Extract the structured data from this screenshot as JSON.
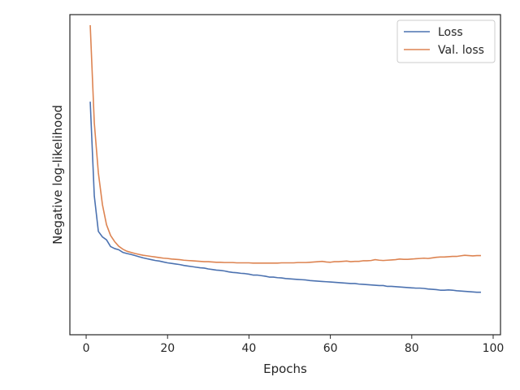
{
  "chart_data": {
    "type": "line",
    "title": "",
    "xlabel": "Epochs",
    "ylabel": "Negative log-likelihood",
    "xlim": [
      -4,
      101.8
    ],
    "ylim": [
      0.0,
      1.0
    ],
    "xticks": [
      "0",
      "20",
      "40",
      "60",
      "80",
      "100"
    ],
    "xtick_values": [
      0,
      20,
      40,
      60,
      80,
      100
    ],
    "y_tick_labels_visible": false,
    "grid": false,
    "legend_position": "top-right",
    "series": [
      {
        "name": "Loss",
        "color": "#4c72b0",
        "x": [
          1,
          2,
          3,
          4,
          5,
          6,
          7,
          8,
          9,
          10,
          11,
          12,
          13,
          14,
          15,
          16,
          17,
          18,
          19,
          20,
          21,
          22,
          23,
          24,
          25,
          26,
          27,
          28,
          29,
          30,
          31,
          32,
          33,
          34,
          35,
          36,
          37,
          38,
          39,
          40,
          41,
          42,
          43,
          44,
          45,
          46,
          47,
          48,
          49,
          50,
          51,
          52,
          53,
          54,
          55,
          56,
          57,
          58,
          59,
          60,
          61,
          62,
          63,
          64,
          65,
          66,
          67,
          68,
          69,
          70,
          71,
          72,
          73,
          74,
          75,
          76,
          77,
          78,
          79,
          80,
          81,
          82,
          83,
          84,
          85,
          86,
          87,
          88,
          89,
          90,
          91,
          92,
          93,
          94,
          95,
          96,
          97
        ],
        "values": [
          0.737,
          0.413,
          0.291,
          0.272,
          0.262,
          0.239,
          0.232,
          0.228,
          0.219,
          0.215,
          0.212,
          0.208,
          0.204,
          0.2,
          0.197,
          0.194,
          0.191,
          0.189,
          0.186,
          0.183,
          0.181,
          0.179,
          0.177,
          0.174,
          0.172,
          0.17,
          0.168,
          0.166,
          0.165,
          0.162,
          0.16,
          0.158,
          0.157,
          0.155,
          0.152,
          0.15,
          0.149,
          0.147,
          0.146,
          0.144,
          0.141,
          0.141,
          0.139,
          0.137,
          0.134,
          0.134,
          0.132,
          0.131,
          0.129,
          0.128,
          0.127,
          0.126,
          0.125,
          0.124,
          0.122,
          0.121,
          0.12,
          0.119,
          0.118,
          0.117,
          0.116,
          0.115,
          0.114,
          0.113,
          0.112,
          0.112,
          0.11,
          0.109,
          0.108,
          0.107,
          0.106,
          0.105,
          0.105,
          0.102,
          0.102,
          0.101,
          0.1,
          0.099,
          0.098,
          0.097,
          0.096,
          0.096,
          0.095,
          0.093,
          0.092,
          0.091,
          0.089,
          0.089,
          0.09,
          0.089,
          0.087,
          0.086,
          0.085,
          0.084,
          0.083,
          0.082,
          0.082
        ]
      },
      {
        "name": "Val. loss",
        "color": "#dd8452",
        "x": [
          1,
          2,
          3,
          4,
          5,
          6,
          7,
          8,
          9,
          10,
          11,
          12,
          13,
          14,
          15,
          16,
          17,
          18,
          19,
          20,
          21,
          22,
          23,
          24,
          25,
          26,
          27,
          28,
          29,
          30,
          31,
          32,
          33,
          34,
          35,
          36,
          37,
          38,
          39,
          40,
          41,
          42,
          43,
          44,
          45,
          46,
          47,
          48,
          49,
          50,
          51,
          52,
          53,
          54,
          55,
          56,
          57,
          58,
          59,
          60,
          61,
          62,
          63,
          64,
          65,
          66,
          67,
          68,
          69,
          70,
          71,
          72,
          73,
          74,
          75,
          76,
          77,
          78,
          79,
          80,
          81,
          82,
          83,
          84,
          85,
          86,
          87,
          88,
          89,
          90,
          91,
          92,
          93,
          94,
          95,
          96,
          97
        ],
        "values": [
          1.0,
          0.664,
          0.492,
          0.383,
          0.314,
          0.277,
          0.256,
          0.24,
          0.23,
          0.223,
          0.219,
          0.215,
          0.212,
          0.209,
          0.207,
          0.205,
          0.203,
          0.201,
          0.199,
          0.198,
          0.196,
          0.195,
          0.194,
          0.192,
          0.191,
          0.19,
          0.189,
          0.188,
          0.187,
          0.187,
          0.186,
          0.185,
          0.185,
          0.184,
          0.184,
          0.184,
          0.183,
          0.183,
          0.183,
          0.183,
          0.182,
          0.182,
          0.182,
          0.182,
          0.182,
          0.182,
          0.182,
          0.183,
          0.183,
          0.183,
          0.183,
          0.184,
          0.184,
          0.184,
          0.185,
          0.186,
          0.187,
          0.188,
          0.186,
          0.185,
          0.187,
          0.187,
          0.188,
          0.189,
          0.187,
          0.188,
          0.188,
          0.19,
          0.19,
          0.191,
          0.194,
          0.192,
          0.191,
          0.192,
          0.193,
          0.194,
          0.196,
          0.195,
          0.195,
          0.196,
          0.197,
          0.198,
          0.199,
          0.198,
          0.2,
          0.202,
          0.203,
          0.203,
          0.204,
          0.205,
          0.205,
          0.207,
          0.209,
          0.208,
          0.207,
          0.208,
          0.208
        ]
      }
    ]
  }
}
